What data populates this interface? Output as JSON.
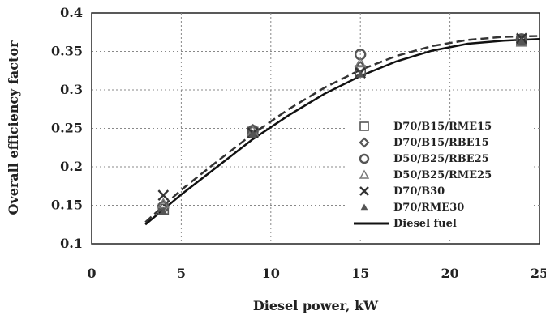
{
  "chart_data": {
    "type": "scatter",
    "title": "",
    "xlabel": "Diesel power, kW",
    "ylabel": "Overall efficiency factor",
    "xlim": [
      0,
      25
    ],
    "ylim": [
      0.1,
      0.4
    ],
    "xticks": [
      0,
      5,
      10,
      15,
      20,
      25
    ],
    "xtick_labels": [
      "0",
      "5",
      "10",
      "15",
      "20",
      "25"
    ],
    "yticks": [
      0.1,
      0.15,
      0.2,
      0.25,
      0.3,
      0.35,
      0.4
    ],
    "ytick_labels": [
      "0.1",
      "0.15",
      "0.2",
      "0.25",
      "0.3",
      "0.35",
      "0.4"
    ],
    "grid": true,
    "legend_position": "bottom-right",
    "series": [
      {
        "name": "D70/B15/RME15",
        "marker": "square-open",
        "color": "#555555",
        "points": [
          [
            4,
            0.145
          ],
          [
            9,
            0.245
          ],
          [
            15,
            0.325
          ],
          [
            24,
            0.364
          ]
        ]
      },
      {
        "name": "D70/B15/RBE15",
        "marker": "diamond-open",
        "color": "#555555",
        "points": [
          [
            4,
            0.15
          ],
          [
            9,
            0.248
          ],
          [
            15,
            0.33
          ],
          [
            24,
            0.365
          ]
        ]
      },
      {
        "name": "D50/B25/RBE25",
        "marker": "circle-open",
        "color": "#555555",
        "points": [
          [
            4,
            0.148
          ],
          [
            9,
            0.247
          ],
          [
            15,
            0.346
          ],
          [
            24,
            0.366
          ]
        ]
      },
      {
        "name": "D50/B25/RME25",
        "marker": "triangle-open",
        "color": "#777777",
        "points": [
          [
            4,
            0.152
          ],
          [
            9,
            0.246
          ],
          [
            15,
            0.335
          ],
          [
            24,
            0.362
          ]
        ]
      },
      {
        "name": "D70/B30",
        "marker": "x",
        "color": "#333333",
        "points": [
          [
            4,
            0.163
          ],
          [
            9,
            0.244
          ],
          [
            15,
            0.322
          ],
          [
            24,
            0.367
          ]
        ]
      },
      {
        "name": "D70/RME30",
        "marker": "triangle-filled",
        "color": "#555555",
        "points": [
          [
            4,
            0.142
          ],
          [
            9,
            0.243
          ],
          [
            15,
            0.32
          ],
          [
            24,
            0.363
          ]
        ]
      },
      {
        "name": "Diesel fuel",
        "marker": "line-solid",
        "color": "#111111",
        "curve": [
          [
            3,
            0.125
          ],
          [
            5,
            0.164
          ],
          [
            7,
            0.2
          ],
          [
            9,
            0.236
          ],
          [
            11,
            0.267
          ],
          [
            13,
            0.295
          ],
          [
            15,
            0.318
          ],
          [
            17,
            0.337
          ],
          [
            19,
            0.351
          ],
          [
            21,
            0.36
          ],
          [
            23,
            0.364
          ],
          [
            25,
            0.366
          ]
        ]
      }
    ],
    "dashed_curve": [
      [
        3,
        0.128
      ],
      [
        5,
        0.17
      ],
      [
        7,
        0.207
      ],
      [
        9,
        0.243
      ],
      [
        11,
        0.275
      ],
      [
        13,
        0.303
      ],
      [
        15,
        0.326
      ],
      [
        17,
        0.344
      ],
      [
        19,
        0.357
      ],
      [
        21,
        0.365
      ],
      [
        23,
        0.369
      ],
      [
        25,
        0.37
      ]
    ]
  }
}
